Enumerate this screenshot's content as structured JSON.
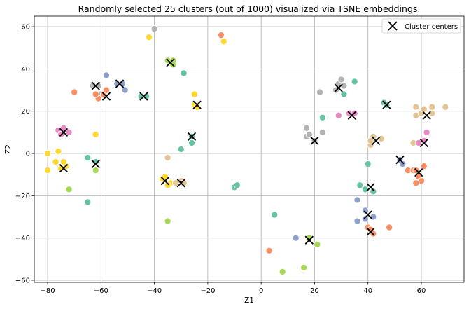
{
  "chart_data": {
    "type": "scatter",
    "title": "Randomly selected 25 clusters (out of 1000) visualized via TSNE embeddings.",
    "xlabel": "Z1",
    "ylabel": "Z2",
    "xlim": [
      -85,
      76
    ],
    "ylim": [
      -61,
      65
    ],
    "xticks": [
      -80,
      -60,
      -40,
      -20,
      0,
      20,
      40,
      60
    ],
    "yticks": [
      -60,
      -40,
      -20,
      0,
      20,
      40,
      60
    ],
    "grid": true,
    "legend": {
      "placement": "top-right",
      "entries": [
        "Cluster centers"
      ]
    },
    "palette": [
      "#66c2a5",
      "#fc8d62",
      "#8da0cb",
      "#e78ac3",
      "#a6d854",
      "#ffd92f",
      "#e5c494",
      "#b3b3b3"
    ],
    "points": [
      {
        "x": -80,
        "y": -8,
        "c": 5
      },
      {
        "x": -80,
        "y": 0,
        "c": 5
      },
      {
        "x": -76,
        "y": 1,
        "c": 5
      },
      {
        "x": -77,
        "y": -4,
        "c": 5
      },
      {
        "x": -75,
        "y": -7,
        "c": 5
      },
      {
        "x": -73,
        "y": -6,
        "c": 5
      },
      {
        "x": -74,
        "y": -4,
        "c": 5
      },
      {
        "x": -72,
        "y": -17,
        "c": 4
      },
      {
        "x": -76,
        "y": 11,
        "c": 3
      },
      {
        "x": -74,
        "y": 12,
        "c": 3
      },
      {
        "x": -72,
        "y": 10,
        "c": 3
      },
      {
        "x": -75,
        "y": 9,
        "c": 3
      },
      {
        "x": -70,
        "y": 29,
        "c": 1
      },
      {
        "x": -65,
        "y": -2,
        "c": 0
      },
      {
        "x": -62,
        "y": -4,
        "c": 0
      },
      {
        "x": -62,
        "y": -8,
        "c": 4
      },
      {
        "x": -65,
        "y": -23,
        "c": 0
      },
      {
        "x": -62,
        "y": 9,
        "c": 5
      },
      {
        "x": -63,
        "y": 32,
        "c": 7
      },
      {
        "x": -61,
        "y": 32,
        "c": 7
      },
      {
        "x": -60,
        "y": 28,
        "c": 7
      },
      {
        "x": -61,
        "y": 26,
        "c": 1
      },
      {
        "x": -62,
        "y": 28,
        "c": 1
      },
      {
        "x": -59,
        "y": 28,
        "c": 1
      },
      {
        "x": -58,
        "y": 30,
        "c": 1
      },
      {
        "x": -58,
        "y": 37,
        "c": 2
      },
      {
        "x": -54,
        "y": 33,
        "c": 2
      },
      {
        "x": -52,
        "y": 33,
        "c": 2
      },
      {
        "x": -51,
        "y": 30,
        "c": 2
      },
      {
        "x": -45,
        "y": 27,
        "c": 0
      },
      {
        "x": -43,
        "y": 27,
        "c": 0
      },
      {
        "x": -42,
        "y": 55,
        "c": 5
      },
      {
        "x": -40,
        "y": 59,
        "c": 7
      },
      {
        "x": -35,
        "y": 44,
        "c": 4
      },
      {
        "x": -33,
        "y": 44,
        "c": 4
      },
      {
        "x": -33,
        "y": 42,
        "c": 4
      },
      {
        "x": -29,
        "y": 38,
        "c": 0
      },
      {
        "x": -37,
        "y": -12,
        "c": 5
      },
      {
        "x": -36,
        "y": -11,
        "c": 5
      },
      {
        "x": -34,
        "y": -14,
        "c": 5
      },
      {
        "x": -35,
        "y": -15,
        "c": 5
      },
      {
        "x": -35,
        "y": -2,
        "c": 6
      },
      {
        "x": -32,
        "y": -14,
        "c": 6
      },
      {
        "x": -30,
        "y": -13,
        "c": 6
      },
      {
        "x": -29,
        "y": -14,
        "c": 6
      },
      {
        "x": -35,
        "y": -32,
        "c": 4
      },
      {
        "x": -26,
        "y": 8,
        "c": 0
      },
      {
        "x": -26,
        "y": 5,
        "c": 0
      },
      {
        "x": -30,
        "y": 2,
        "c": 0
      },
      {
        "x": -25,
        "y": 28,
        "c": 5
      },
      {
        "x": -25,
        "y": 23,
        "c": 5
      },
      {
        "x": -24,
        "y": 22,
        "c": 5
      },
      {
        "x": -15,
        "y": 56,
        "c": 1
      },
      {
        "x": -14,
        "y": 53,
        "c": 5
      },
      {
        "x": -10,
        "y": -16,
        "c": 0
      },
      {
        "x": -9,
        "y": -15,
        "c": 0
      },
      {
        "x": 3,
        "y": -46,
        "c": 1
      },
      {
        "x": 5,
        "y": -29,
        "c": 0
      },
      {
        "x": 8,
        "y": -56,
        "c": 4
      },
      {
        "x": 13,
        "y": -40,
        "c": 2
      },
      {
        "x": 16,
        "y": -54,
        "c": 4
      },
      {
        "x": 18,
        "y": -40,
        "c": 4
      },
      {
        "x": 21,
        "y": -43,
        "c": 4
      },
      {
        "x": 17,
        "y": 8,
        "c": 7
      },
      {
        "x": 18,
        "y": 9,
        "c": 7
      },
      {
        "x": 17,
        "y": 12,
        "c": 7
      },
      {
        "x": 20,
        "y": 6,
        "c": 7
      },
      {
        "x": 23,
        "y": 10,
        "c": 7
      },
      {
        "x": 22,
        "y": 29,
        "c": 7
      },
      {
        "x": 23,
        "y": 17,
        "c": 0
      },
      {
        "x": 28,
        "y": 30,
        "c": 7
      },
      {
        "x": 29,
        "y": 33,
        "c": 7
      },
      {
        "x": 30,
        "y": 35,
        "c": 7
      },
      {
        "x": 31,
        "y": 32,
        "c": 7
      },
      {
        "x": 31,
        "y": 28,
        "c": 0
      },
      {
        "x": 29,
        "y": 18,
        "c": 3
      },
      {
        "x": 33,
        "y": 19,
        "c": 3
      },
      {
        "x": 35,
        "y": 19,
        "c": 3
      },
      {
        "x": 35,
        "y": 34,
        "c": 0
      },
      {
        "x": 37,
        "y": -15,
        "c": 0
      },
      {
        "x": 36,
        "y": -22,
        "c": 2
      },
      {
        "x": 36,
        "y": -32,
        "c": 2
      },
      {
        "x": 39,
        "y": -17,
        "c": 0
      },
      {
        "x": 40,
        "y": -5,
        "c": 0
      },
      {
        "x": 42,
        "y": -18,
        "c": 0
      },
      {
        "x": 39,
        "y": -27,
        "c": 2
      },
      {
        "x": 39,
        "y": -31,
        "c": 2
      },
      {
        "x": 42,
        "y": -30,
        "c": 2
      },
      {
        "x": 40,
        "y": -35,
        "c": 1
      },
      {
        "x": 41,
        "y": -36,
        "c": 1
      },
      {
        "x": 42,
        "y": -38,
        "c": 1
      },
      {
        "x": 48,
        "y": -35,
        "c": 1
      },
      {
        "x": 41,
        "y": 4,
        "c": 6
      },
      {
        "x": 42,
        "y": 8,
        "c": 6
      },
      {
        "x": 45,
        "y": 7,
        "c": 6
      },
      {
        "x": 41,
        "y": 6,
        "c": 6
      },
      {
        "x": 46,
        "y": 24,
        "c": 0
      },
      {
        "x": 47,
        "y": 23,
        "c": 0
      },
      {
        "x": 52,
        "y": -3,
        "c": 2
      },
      {
        "x": 53,
        "y": -5,
        "c": 2
      },
      {
        "x": 55,
        "y": -8,
        "c": 1
      },
      {
        "x": 57,
        "y": -8,
        "c": 1
      },
      {
        "x": 58,
        "y": -8,
        "c": 1
      },
      {
        "x": 59,
        "y": -11,
        "c": 1
      },
      {
        "x": 60,
        "y": -13,
        "c": 1
      },
      {
        "x": 58,
        "y": -14,
        "c": 1
      },
      {
        "x": 61,
        "y": -6,
        "c": 1
      },
      {
        "x": 57,
        "y": 5,
        "c": 6
      },
      {
        "x": 59,
        "y": 5,
        "c": 3
      },
      {
        "x": 61,
        "y": 6,
        "c": 3
      },
      {
        "x": 62,
        "y": 10,
        "c": 3
      },
      {
        "x": 58,
        "y": 18,
        "c": 6
      },
      {
        "x": 60,
        "y": 19,
        "c": 6
      },
      {
        "x": 61,
        "y": 21,
        "c": 6
      },
      {
        "x": 64,
        "y": 22,
        "c": 6
      },
      {
        "x": 58,
        "y": 22,
        "c": 6
      },
      {
        "x": 64,
        "y": 19,
        "c": 6
      },
      {
        "x": 69,
        "y": 22,
        "c": 6
      }
    ],
    "centers": [
      {
        "x": -74,
        "y": -7
      },
      {
        "x": -74,
        "y": 10
      },
      {
        "x": -62,
        "y": -5
      },
      {
        "x": -62,
        "y": 32
      },
      {
        "x": -58,
        "y": 27
      },
      {
        "x": -53,
        "y": 33
      },
      {
        "x": -44,
        "y": 27
      },
      {
        "x": -34,
        "y": 43
      },
      {
        "x": -36,
        "y": -13
      },
      {
        "x": -30,
        "y": -14
      },
      {
        "x": -26,
        "y": 8
      },
      {
        "x": -24,
        "y": 23
      },
      {
        "x": 18,
        "y": -41
      },
      {
        "x": 20,
        "y": 6
      },
      {
        "x": 29,
        "y": 31
      },
      {
        "x": 34,
        "y": 18
      },
      {
        "x": 41,
        "y": -16
      },
      {
        "x": 40,
        "y": -29
      },
      {
        "x": 41,
        "y": -37
      },
      {
        "x": 43,
        "y": 6
      },
      {
        "x": 47,
        "y": 23
      },
      {
        "x": 52,
        "y": -3
      },
      {
        "x": 59,
        "y": -9
      },
      {
        "x": 61,
        "y": 5
      },
      {
        "x": 62,
        "y": 18
      }
    ]
  }
}
